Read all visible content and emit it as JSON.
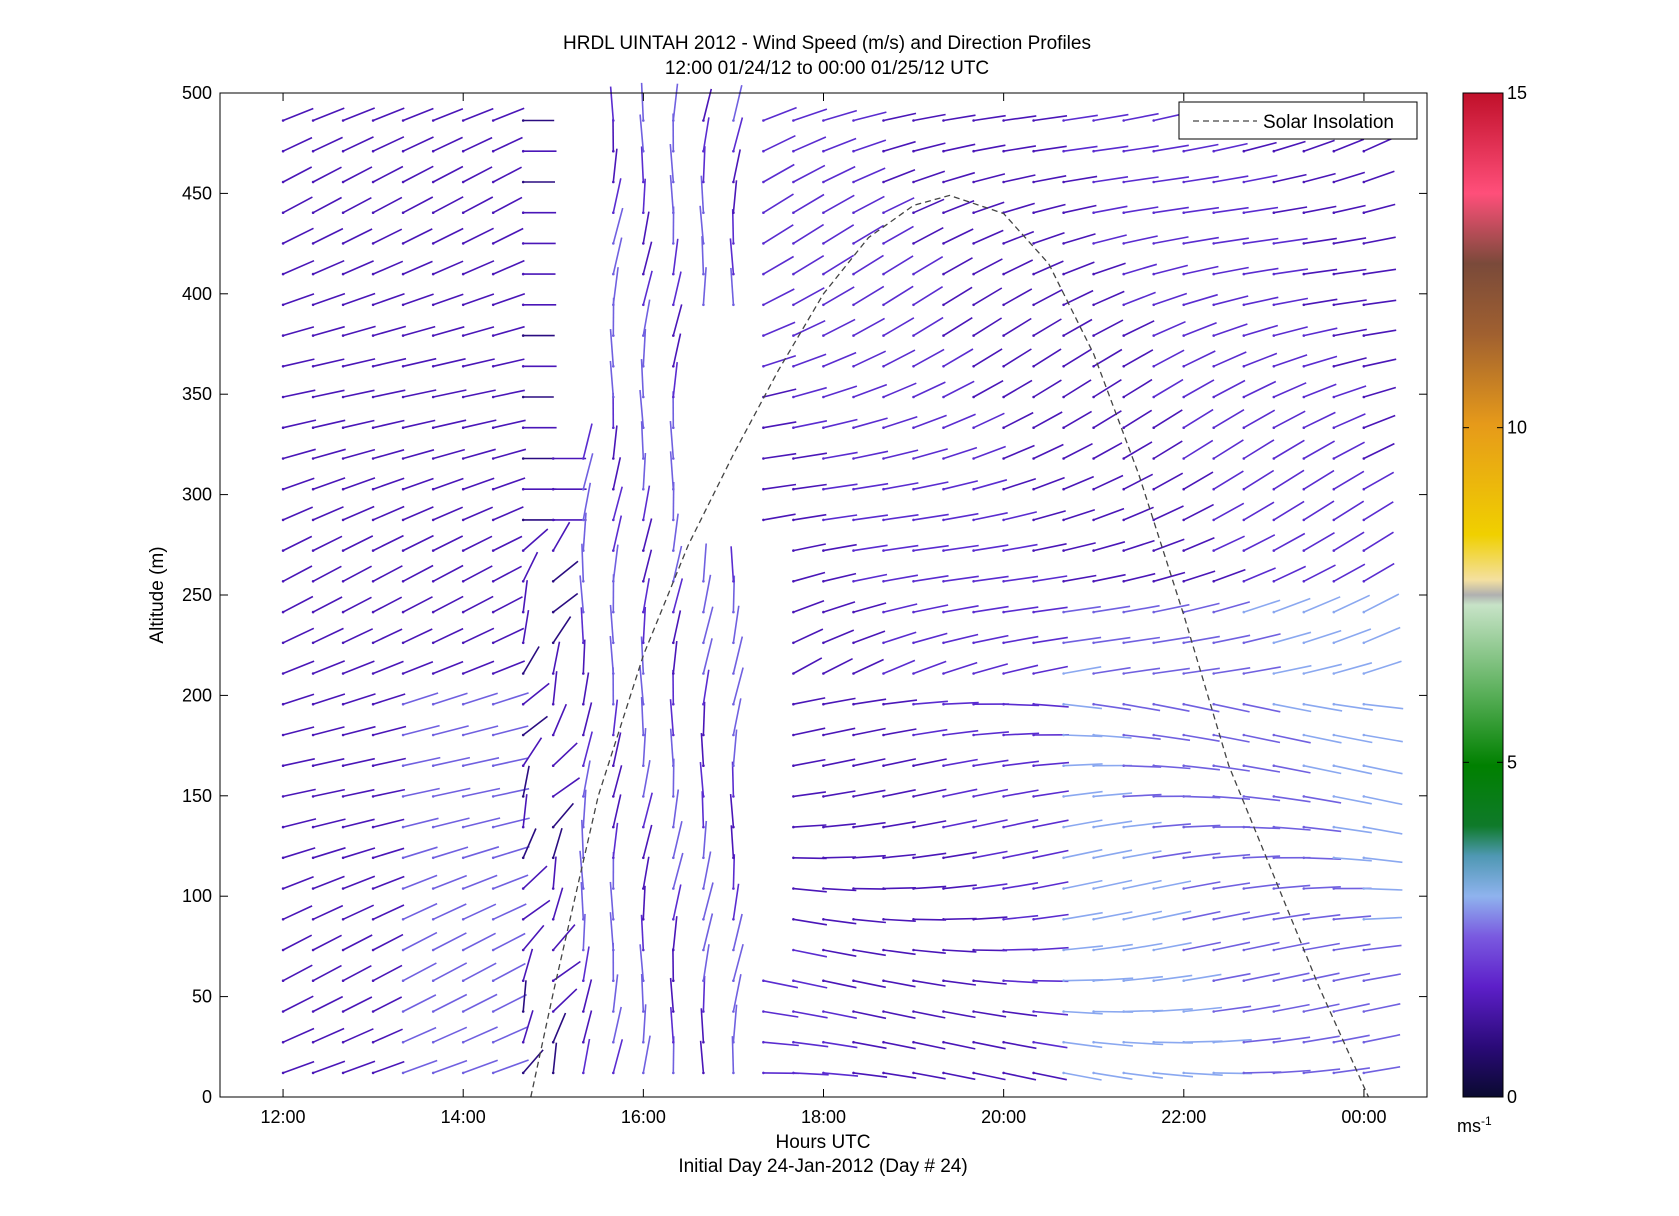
{
  "chart_data": {
    "type": "wind_barb_profile",
    "title": "HRDL UINTAH 2012 - Wind Speed (m/s) and Direction Profiles",
    "subtitle": "12:00 01/24/12 to 00:00 01/25/12  UTC",
    "xlabel": "Hours UTC",
    "xlabel2": "Initial Day 24-Jan-2012 (Day # 24)",
    "ylabel": "Altitude (m)",
    "xlim": [
      11.3,
      24.7
    ],
    "ylim": [
      0,
      500
    ],
    "x_ticks": [
      12,
      14,
      16,
      18,
      20,
      22,
      24
    ],
    "x_tick_labels": [
      "12:00",
      "14:00",
      "16:00",
      "18:00",
      "20:00",
      "22:00",
      "00:00"
    ],
    "y_ticks": [
      0,
      50,
      100,
      150,
      200,
      250,
      300,
      350,
      400,
      450,
      500
    ],
    "y_tick_labels": [
      "0",
      "50",
      "100",
      "150",
      "200",
      "250",
      "300",
      "350",
      "400",
      "450",
      "500"
    ],
    "legend": {
      "label": "Solar Insolation",
      "position": "top-right",
      "style": "dashed"
    },
    "colorbar": {
      "min": 0,
      "max": 15,
      "ticks": [
        0,
        5,
        10,
        15
      ],
      "tick_labels": [
        "0",
        "5",
        "10",
        "15"
      ],
      "unit_label": "ms",
      "unit_exp": "-1"
    },
    "solar_insolation": {
      "hours": [
        14.75,
        15.0,
        15.5,
        16.0,
        16.5,
        17.0,
        17.5,
        18.0,
        18.5,
        19.0,
        19.4,
        20.0,
        20.5,
        21.0,
        21.5,
        22.0,
        22.5,
        23.0,
        23.5,
        24.05
      ],
      "altitude": [
        0,
        52,
        150,
        220,
        275,
        320,
        362,
        400,
        428,
        444,
        449,
        440,
        415,
        370,
        310,
        240,
        165,
        110,
        55,
        0
      ]
    },
    "wind_profile_grid": {
      "hours_start": 12.0,
      "hours_step": 0.3333,
      "n_times": 37,
      "alt_start": 12,
      "alt_step": 15.3,
      "n_alts": 32
    }
  }
}
